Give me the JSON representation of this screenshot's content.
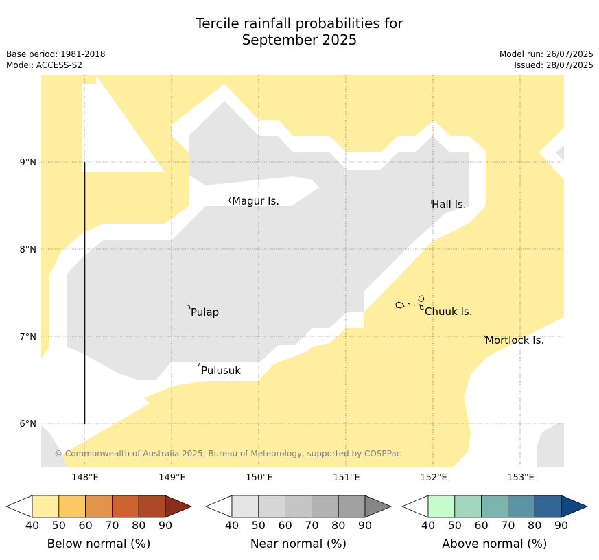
{
  "title": {
    "line1": "Tercile rainfall probabilities for",
    "line2": "September 2025"
  },
  "meta": {
    "base_period": "Base period: 1981-2018",
    "model": "Model: ACCESS-S2",
    "model_run": "Model run: 26/07/2025",
    "issued": "Issued: 28/07/2025"
  },
  "map": {
    "lon_ticks": [
      "148°E",
      "149°E",
      "150°E",
      "151°E",
      "152°E",
      "153°E"
    ],
    "lat_ticks": [
      "9°N",
      "8°N",
      "7°N",
      "6°N"
    ],
    "places": [
      "Magur Is.",
      "Hall Is.",
      "Pulap",
      "Chuuk Is.",
      "Mortlock Is.",
      "Pulusuk"
    ],
    "copyright": "© Commonwealth of Australia 2025, Bureau of Meteorology, supported by COSPPac",
    "colors": {
      "below_normal_fill": "#ffeda0",
      "near_normal_fill": "#e5e5e5",
      "background": "#ffffff"
    }
  },
  "legends": [
    {
      "label": "Below normal (%)",
      "ticks": [
        "40",
        "50",
        "60",
        "70",
        "80",
        "90"
      ],
      "colors": [
        "#ffeda0",
        "#fec965",
        "#e2954a",
        "#cc6331",
        "#ae4827",
        "#8b2c1e"
      ]
    },
    {
      "label": "Near normal (%)",
      "ticks": [
        "40",
        "50",
        "60",
        "70",
        "80",
        "90"
      ],
      "colors": [
        "#e5e5e5",
        "#d6d6d6",
        "#c5c5c5",
        "#b3b3b3",
        "#a1a1a1",
        "#868686"
      ]
    },
    {
      "label": "Above normal (%)",
      "ticks": [
        "40",
        "50",
        "60",
        "70",
        "80",
        "90"
      ],
      "colors": [
        "#c7fdcc",
        "#a3d7bd",
        "#7cb5b0",
        "#5b94a4",
        "#316697",
        "#124682"
      ]
    }
  ]
}
